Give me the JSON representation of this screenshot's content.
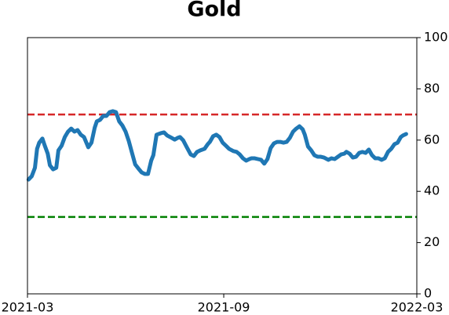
{
  "chart_data": {
    "type": "line",
    "title": "Gold",
    "x": [
      1,
      4,
      7,
      9,
      11,
      14,
      16,
      19,
      21,
      24,
      27,
      29,
      32,
      35,
      38,
      41,
      44,
      47,
      50,
      53,
      57,
      60,
      63,
      65,
      68,
      71,
      74,
      77,
      80,
      83,
      86,
      89,
      92,
      95,
      98,
      101,
      104,
      107,
      110,
      113,
      116,
      118,
      121,
      125,
      128,
      131,
      135,
      138,
      141,
      143,
      146,
      149,
      153,
      156,
      159,
      162,
      166,
      169,
      171,
      174,
      177,
      180,
      183,
      186,
      189,
      193,
      196,
      199,
      202,
      205,
      208,
      210,
      213,
      216,
      219,
      222,
      225,
      228,
      231,
      234,
      237,
      240,
      243,
      246,
      249,
      252,
      255,
      258,
      260,
      263,
      266,
      269,
      272,
      275,
      278,
      282,
      285,
      288,
      291,
      294,
      297,
      299,
      302,
      305,
      308,
      311,
      314,
      317,
      320,
      323,
      326,
      329,
      332,
      335,
      338,
      341,
      344,
      347,
      350,
      352,
      355
    ],
    "series": [
      {
        "color": "#1f77b4",
        "values": [
          44.6,
          45.9,
          49.2,
          56.6,
          59.0,
          60.6,
          58.1,
          54.7,
          50.2,
          48.6,
          49.2,
          56.0,
          57.8,
          61.2,
          63.3,
          64.5,
          63.3,
          63.9,
          62.1,
          61.2,
          57.2,
          59.0,
          64.8,
          67.3,
          67.9,
          69.4,
          69.4,
          70.9,
          71.3,
          70.9,
          67.3,
          65.7,
          63.3,
          59.6,
          55.0,
          50.5,
          48.9,
          47.4,
          46.8,
          46.8,
          52.0,
          54.1,
          62.1,
          62.7,
          63.0,
          61.8,
          60.9,
          60.2,
          60.9,
          61.2,
          59.9,
          57.5,
          54.4,
          53.8,
          55.4,
          56.0,
          56.6,
          58.4,
          59.3,
          61.5,
          62.1,
          61.2,
          59.0,
          57.8,
          56.6,
          55.7,
          55.4,
          54.4,
          52.9,
          52.0,
          52.6,
          52.9,
          52.9,
          52.6,
          52.3,
          50.8,
          52.6,
          56.9,
          58.7,
          59.3,
          59.3,
          59.0,
          59.3,
          60.9,
          63.3,
          64.5,
          65.4,
          64.2,
          62.1,
          57.5,
          56.0,
          54.1,
          53.5,
          53.5,
          53.2,
          52.3,
          52.9,
          52.6,
          53.5,
          54.4,
          54.7,
          55.4,
          54.7,
          53.2,
          53.5,
          55.0,
          55.4,
          55.0,
          56.3,
          54.1,
          52.9,
          52.9,
          52.3,
          52.9,
          55.4,
          56.6,
          58.4,
          59.0,
          61.2,
          61.8,
          62.4
        ]
      }
    ],
    "xlim": [
      0,
      365
    ],
    "xticks": [
      {
        "value": 0,
        "label": "2021-03"
      },
      {
        "value": 184,
        "label": "2021-09"
      },
      {
        "value": 365,
        "label": "2022-03"
      }
    ],
    "ylim": [
      0,
      100
    ],
    "yticks": [
      0,
      20,
      40,
      60,
      80,
      100
    ],
    "y_axis_side": "right",
    "hlines": [
      {
        "value": 70,
        "color": "#d62728"
      },
      {
        "value": 30,
        "color": "#008000"
      }
    ]
  }
}
